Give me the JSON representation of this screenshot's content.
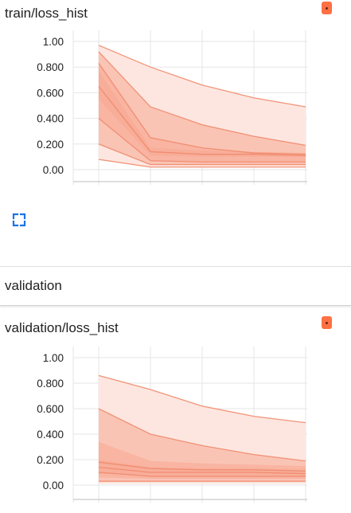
{
  "train_card": {
    "title": "train/loss_hist",
    "menu_icon": "more-vert-icon",
    "expand_icon": "fullscreen-icon"
  },
  "section": {
    "title": "validation"
  },
  "validation_card": {
    "title": "validation/loss_hist",
    "menu_icon": "more-vert-icon"
  },
  "colors": {
    "band_light": "#fde6e0",
    "band_mid": "#f7a891",
    "line": "#f08a6c",
    "grid": "#e6e6e6",
    "menu": "#ff7043",
    "expand": "#1a73e8"
  },
  "chart_data": [
    {
      "type": "area",
      "title": "train/loss_hist",
      "y_ticks": [
        "1.00",
        "0.800",
        "0.600",
        "0.400",
        "0.200",
        "0.00"
      ],
      "ylim": [
        0,
        1
      ],
      "x": [
        0,
        1,
        2,
        3,
        4
      ],
      "grid": true,
      "bands": [
        {
          "lower": [
            0.08,
            0.02,
            0.02,
            0.02,
            0.02
          ],
          "upper": [
            0.97,
            0.8,
            0.66,
            0.56,
            0.49
          ]
        },
        {
          "lower": [
            0.2,
            0.04,
            0.04,
            0.04,
            0.04
          ],
          "upper": [
            0.92,
            0.49,
            0.35,
            0.26,
            0.19
          ]
        },
        {
          "lower": [
            0.4,
            0.07,
            0.06,
            0.06,
            0.06
          ],
          "upper": [
            0.83,
            0.25,
            0.17,
            0.13,
            0.12
          ]
        },
        {
          "lower": [
            0.55,
            0.11,
            0.1,
            0.1,
            0.1
          ],
          "upper": [
            0.77,
            0.17,
            0.15,
            0.14,
            0.13
          ]
        }
      ],
      "lines": [
        [
          0.97,
          0.8,
          0.66,
          0.56,
          0.49
        ],
        [
          0.92,
          0.49,
          0.35,
          0.26,
          0.19
        ],
        [
          0.83,
          0.25,
          0.17,
          0.13,
          0.12
        ],
        [
          0.65,
          0.14,
          0.12,
          0.12,
          0.11
        ],
        [
          0.4,
          0.07,
          0.06,
          0.06,
          0.06
        ],
        [
          0.2,
          0.04,
          0.04,
          0.04,
          0.04
        ],
        [
          0.08,
          0.02,
          0.02,
          0.02,
          0.02
        ]
      ]
    },
    {
      "type": "area",
      "title": "validation/loss_hist",
      "y_ticks": [
        "1.00",
        "0.800",
        "0.600",
        "0.400",
        "0.200",
        "0.00"
      ],
      "ylim": [
        0,
        1
      ],
      "x": [
        0,
        1,
        2,
        3,
        4
      ],
      "grid": true,
      "bands": [
        {
          "lower": [
            0.01,
            0.01,
            0.01,
            0.01,
            0.01
          ],
          "upper": [
            0.86,
            0.75,
            0.62,
            0.54,
            0.49
          ]
        },
        {
          "lower": [
            0.03,
            0.03,
            0.03,
            0.03,
            0.03
          ],
          "upper": [
            0.6,
            0.4,
            0.31,
            0.24,
            0.19
          ]
        },
        {
          "lower": [
            0.06,
            0.05,
            0.05,
            0.05,
            0.05
          ],
          "upper": [
            0.34,
            0.19,
            0.17,
            0.16,
            0.15
          ]
        },
        {
          "lower": [
            0.09,
            0.08,
            0.08,
            0.08,
            0.08
          ],
          "upper": [
            0.2,
            0.14,
            0.13,
            0.13,
            0.12
          ]
        }
      ],
      "lines": [
        [
          0.86,
          0.75,
          0.62,
          0.54,
          0.49
        ],
        [
          0.6,
          0.4,
          0.31,
          0.24,
          0.19
        ],
        [
          0.18,
          0.13,
          0.12,
          0.12,
          0.11
        ],
        [
          0.14,
          0.1,
          0.1,
          0.1,
          0.09
        ],
        [
          0.1,
          0.07,
          0.07,
          0.07,
          0.07
        ],
        [
          0.03,
          0.03,
          0.03,
          0.03,
          0.03
        ]
      ]
    }
  ]
}
